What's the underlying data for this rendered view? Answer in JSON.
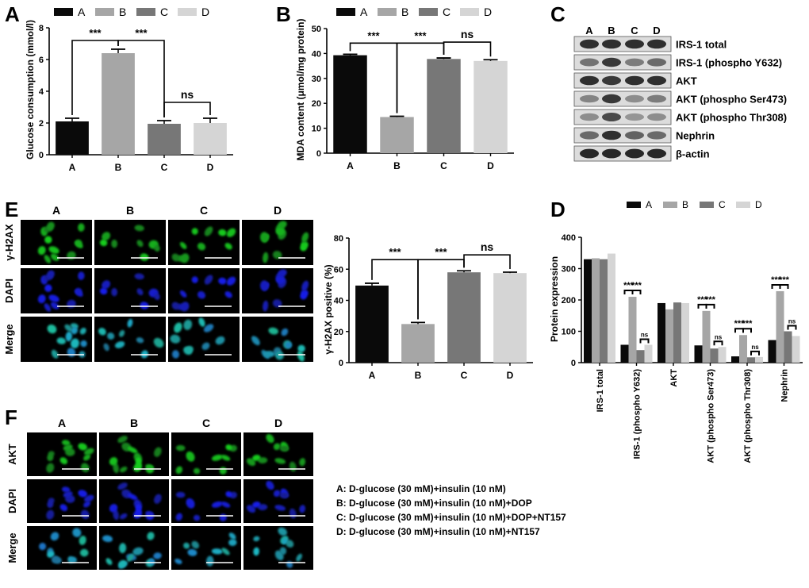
{
  "colors": {
    "A": "#0a0a0a",
    "B": "#a6a6a6",
    "C": "#777777",
    "D": "#d5d5d5"
  },
  "panels": {
    "A": "A",
    "B": "B",
    "C": "C",
    "D": "D",
    "E": "E",
    "F": "F"
  },
  "legend": [
    "A",
    "B",
    "C",
    "D"
  ],
  "blot": {
    "lanes": [
      "A",
      "B",
      "C",
      "D"
    ],
    "proteins": [
      "IRS-1 total",
      "IRS-1 (phospho Y632)",
      "AKT",
      "AKT (phospho Ser473)",
      "AKT (phospho Thr308)",
      "Nephrin",
      "β-actin"
    ]
  },
  "panel_e_images": {
    "columns": [
      "A",
      "B",
      "C",
      "D"
    ],
    "rows": [
      {
        "label": "γ-H2AX",
        "stain": "green"
      },
      {
        "label": "DAPI",
        "stain": "blue"
      },
      {
        "label": "Merge",
        "stain": "merge"
      }
    ]
  },
  "panel_f_images": {
    "columns": [
      "A",
      "B",
      "C",
      "D"
    ],
    "rows": [
      {
        "label": "AKT",
        "stain": "green"
      },
      {
        "label": "DAPI",
        "stain": "blue"
      },
      {
        "label": "Merge",
        "stain": "merge"
      }
    ]
  },
  "condition_key": [
    "A: D-glucose (30 mM)+insulin (10 nM)",
    "B: D-glucose (30 mM)+insulin (10 nM)+DOP",
    "C: D-glucose (30 mM)+insulin (10 nM)+DOP+NT157",
    "D: D-glucose (30 mM)+insulin (10 nM)+NT157"
  ],
  "chart_data": [
    {
      "type": "bar",
      "categories": [
        "A",
        "B",
        "C",
        "D"
      ],
      "values": [
        2.1,
        6.4,
        1.95,
        2.0
      ],
      "errors": [
        0.2,
        0.25,
        0.2,
        0.3
      ],
      "ylabel": "Glucose consumption (mmol/l)",
      "ylim": [
        0,
        8
      ],
      "yticks": [
        "0",
        "2",
        "4",
        "6",
        "8"
      ],
      "significance": [
        {
          "from": "A",
          "to": "B",
          "label": "***"
        },
        {
          "from": "B",
          "to": "C",
          "label": "***"
        },
        {
          "from": "C",
          "to": "D",
          "label": "ns"
        }
      ]
    },
    {
      "type": "bar",
      "categories": [
        "A",
        "B",
        "C",
        "D"
      ],
      "values": [
        39.3,
        14.5,
        37.8,
        37.0
      ],
      "errors": [
        0.4,
        0.3,
        0.4,
        0.5
      ],
      "ylabel": "MDA content (μmol/mg protein)",
      "ylim": [
        0,
        50
      ],
      "yticks": [
        "0",
        "10",
        "20",
        "30",
        "40",
        "50"
      ],
      "significance": [
        {
          "from": "A",
          "to": "B",
          "label": "***"
        },
        {
          "from": "B",
          "to": "C",
          "label": "***"
        },
        {
          "from": "C",
          "to": "D",
          "label": "ns"
        }
      ]
    },
    {
      "type": "bar",
      "categories": [
        "A",
        "B",
        "C",
        "D"
      ],
      "values": [
        49.5,
        24.8,
        58.0,
        57.5
      ],
      "errors": [
        1.5,
        1.0,
        1.0,
        0.6
      ],
      "ylabel": "γ-H2AX positive (%)",
      "ylim": [
        0,
        80
      ],
      "yticks": [
        "0",
        "20",
        "40",
        "60",
        "80"
      ],
      "significance": [
        {
          "from": "A",
          "to": "B",
          "label": "***"
        },
        {
          "from": "B",
          "to": "C",
          "label": "***"
        },
        {
          "from": "C",
          "to": "D",
          "label": "ns"
        }
      ]
    },
    {
      "type": "bar",
      "categories": [
        "IRS-1 total",
        "IRS-1 (phospho Y632)",
        "AKT",
        "AKT (phospho Ser473)",
        "AKT (phospho Thr308)",
        "Nephrin"
      ],
      "series": [
        {
          "name": "A",
          "values": [
            330,
            57,
            190,
            55,
            20,
            72
          ]
        },
        {
          "name": "B",
          "values": [
            333,
            210,
            170,
            165,
            88,
            228
          ]
        },
        {
          "name": "C",
          "values": [
            330,
            40,
            192,
            45,
            17,
            100
          ]
        },
        {
          "name": "D",
          "values": [
            348,
            57,
            190,
            50,
            18,
            85
          ]
        }
      ],
      "ylabel": "Protein expression",
      "ylim": [
        0,
        400
      ],
      "yticks": [
        "0",
        "100",
        "200",
        "300",
        "400"
      ],
      "legend_position": "top",
      "significance_labels": [
        "***",
        "***",
        "ns"
      ]
    }
  ]
}
